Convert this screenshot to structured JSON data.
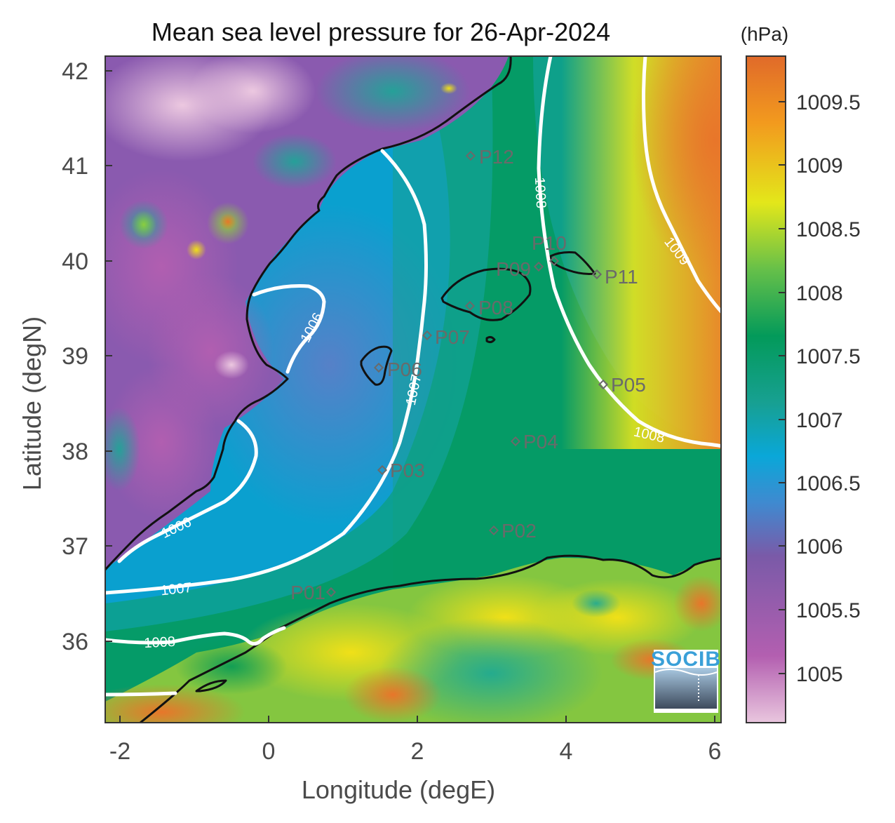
{
  "title": "Mean sea level pressure for 26-Apr-2024",
  "colorbar_unit": "(hPa)",
  "xlabel": "Longitude (degE)",
  "ylabel": "Latitude (degN)",
  "x_ticks": [
    "-2",
    "0",
    "2",
    "4",
    "6"
  ],
  "y_ticks": [
    "42",
    "41",
    "40",
    "39",
    "38",
    "37",
    "36"
  ],
  "colorbar_ticks": [
    "1009.5",
    "1009",
    "1008.5",
    "1008",
    "1007.5",
    "1007",
    "1006.5",
    "1006",
    "1005.5",
    "1005"
  ],
  "colorbar_range": [
    1004.6,
    1009.9
  ],
  "contour_labels": [
    "1006",
    "1006",
    "1007",
    "1007",
    "1008",
    "1008",
    "1008",
    "1009"
  ],
  "stations": [
    "P01",
    "P02",
    "P03",
    "P04",
    "P05",
    "P06",
    "P07",
    "P08",
    "P09",
    "P10",
    "P11",
    "P12"
  ],
  "logo": "SOCIB",
  "colors": {
    "colormap": [
      "#e9c6de",
      "#b35fb0",
      "#7a5aa8",
      "#3f8ad0",
      "#0aa7d8",
      "#17a092",
      "#039a5a",
      "#66c049",
      "#e3e71a",
      "#f29a1e",
      "#e06a2a"
    ],
    "contour": "#ffffff",
    "coastline": "#111111",
    "station": "#6a6a6a"
  },
  "chart_data": {
    "type": "heatmap",
    "title": "Mean sea level pressure for 26-Apr-2024",
    "xlabel": "Longitude (degE)",
    "ylabel": "Latitude (degN)",
    "xlim": [
      -2.25,
      6.05
    ],
    "ylim": [
      35.15,
      42.15
    ],
    "clim": [
      1004.6,
      1009.9
    ],
    "colorbar_unit": "(hPa)",
    "contour_levels": [
      1006,
      1007,
      1008,
      1009
    ],
    "stations": [
      {
        "name": "P01",
        "lon": 0.87,
        "lat": 36.5
      },
      {
        "name": "P02",
        "lon": 3.0,
        "lat": 37.15
      },
      {
        "name": "P03",
        "lon": 1.55,
        "lat": 37.8
      },
      {
        "name": "P04",
        "lon": 3.3,
        "lat": 38.1
      },
      {
        "name": "P05",
        "lon": 4.5,
        "lat": 38.7
      },
      {
        "name": "P06",
        "lon": 1.48,
        "lat": 38.88
      },
      {
        "name": "P07",
        "lon": 2.1,
        "lat": 39.2
      },
      {
        "name": "P08",
        "lon": 2.7,
        "lat": 39.5
      },
      {
        "name": "P09",
        "lon": 3.0,
        "lat": 39.85
      },
      {
        "name": "P10",
        "lon": 3.6,
        "lat": 39.95
      },
      {
        "name": "P11",
        "lon": 4.4,
        "lat": 39.85
      },
      {
        "name": "P12",
        "lon": 2.7,
        "lat": 41.1
      }
    ]
  }
}
